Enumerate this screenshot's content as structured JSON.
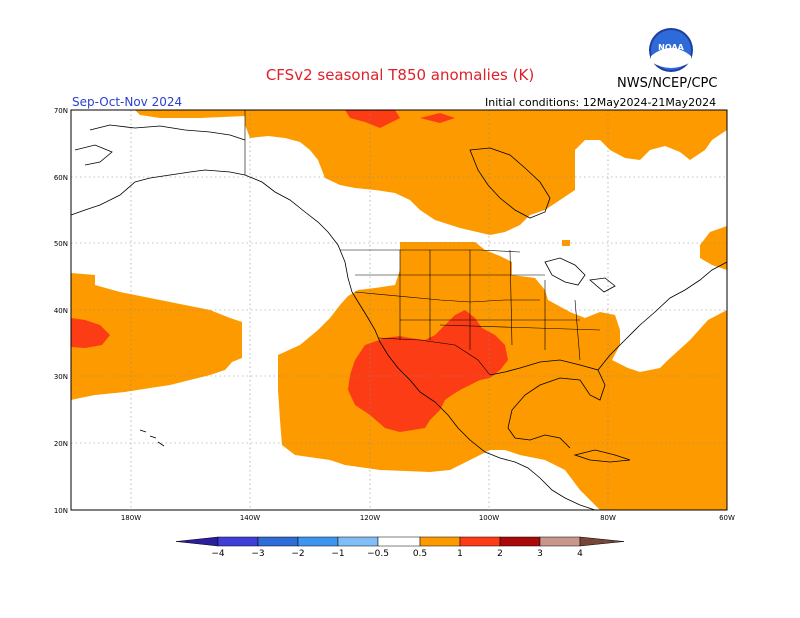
{
  "title": "CFSv2 seasonal T850 anomalies (K)",
  "season": "Sep-Oct-Nov 2024",
  "initial_conditions": "Initial conditions: 12May2024-21May2024",
  "org": "NWS/NCEP/CPC",
  "logo_text": "NOAA",
  "lat_labels": [
    "70N",
    "60N",
    "50N",
    "40N",
    "30N",
    "20N",
    "10N"
  ],
  "lon_labels": [
    "180W",
    "140W",
    "120W",
    "100W",
    "80W",
    "60W"
  ],
  "colorbar": {
    "labels": [
      "−4",
      "−3",
      "−2",
      "−1",
      "−0.5",
      "0.5",
      "1",
      "2",
      "3",
      "4"
    ],
    "colors": [
      "#2a1e9e",
      "#3f3fd8",
      "#2e6cd8",
      "#3c96f0",
      "#82bef5",
      "#ffffff",
      "#fd9a00",
      "#fc3c14",
      "#a80a0a",
      "#c8968c",
      "#784636"
    ]
  },
  "colors": {
    "anomaly_05_1": "#fd9a00",
    "anomaly_1_2": "#fc3c14",
    "anomaly_2_3": "#a80a0a",
    "title": "#e0202a",
    "season": "#2a3fd0"
  }
}
